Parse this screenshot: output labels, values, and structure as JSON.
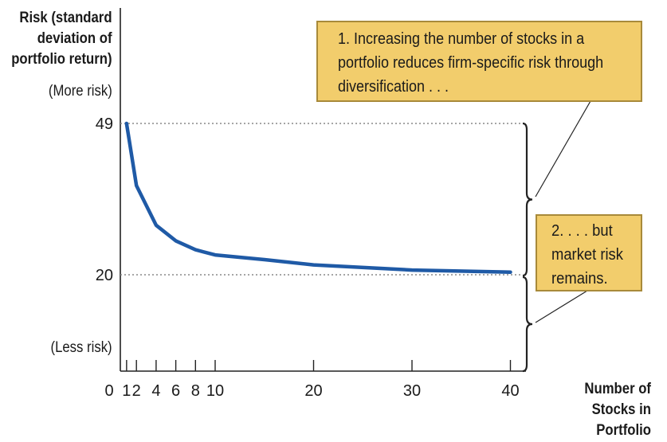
{
  "chart_data": {
    "type": "line",
    "ylabel_lines": [
      "Risk (standard",
      "deviation of",
      "portfolio return)"
    ],
    "xlabel_lines": [
      "Number of",
      "Stocks in",
      "Portfolio"
    ],
    "y_top_note": "(More risk)",
    "y_bottom_note": "(Less risk)",
    "y_ticks": [
      {
        "value": 49,
        "label": "49"
      },
      {
        "value": 20,
        "label": "20"
      }
    ],
    "x_origin_label": "0",
    "x_ticks": [
      1,
      2,
      4,
      6,
      8,
      10,
      20,
      30,
      40
    ],
    "x_tick_labels": [
      "1",
      "2",
      "4",
      "6",
      "8",
      "10",
      "20",
      "30",
      "40"
    ],
    "xlim": [
      0,
      40
    ],
    "ylim": [
      0,
      49
    ],
    "series": [
      {
        "color": "#1f5aa6",
        "x": [
          1,
          2,
          4,
          6,
          8,
          10,
          15,
          20,
          30,
          40
        ],
        "y": [
          49,
          37.1,
          29.5,
          26.5,
          24.8,
          23.8,
          22.9,
          21.9,
          20.9,
          20.5
        ]
      }
    ],
    "reference_lines": [
      49,
      20
    ],
    "callouts": [
      {
        "lines": [
          "1. Increasing the number of stocks in a",
          "portfolio reduces firm-specific risk through",
          "diversification . . ."
        ]
      },
      {
        "lines": [
          "2. . . . but",
          "market risk",
          "remains."
        ]
      }
    ],
    "colors": {
      "line": "#1f5aa6",
      "callout_fill": "#f2cd6c",
      "callout_border": "#a88a3a",
      "guide": "#888888"
    }
  }
}
